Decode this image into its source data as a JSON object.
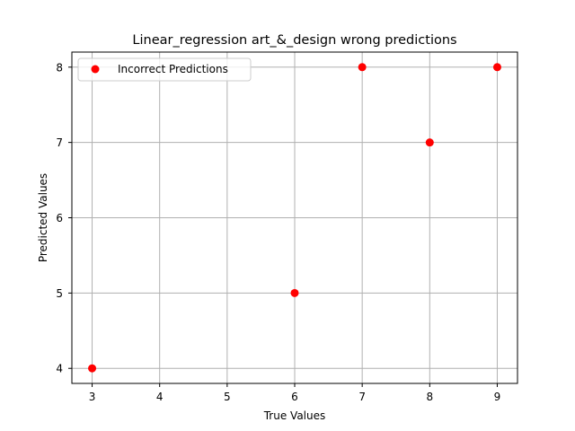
{
  "chart_data": {
    "type": "scatter",
    "title": "Linear_regression art_&_design wrong predictions",
    "xlabel": "True Values",
    "ylabel": "Predicted Values",
    "xlim": [
      2.7,
      9.3
    ],
    "ylim": [
      3.8,
      8.2
    ],
    "xticks": [
      3,
      4,
      5,
      6,
      7,
      8,
      9
    ],
    "yticks": [
      4,
      5,
      6,
      7,
      8
    ],
    "grid": true,
    "legend_position": "upper-left",
    "series": [
      {
        "name": "Incorrect Predictions",
        "color": "#ff0000",
        "points": [
          {
            "x": 3,
            "y": 4
          },
          {
            "x": 6,
            "y": 5
          },
          {
            "x": 7,
            "y": 8
          },
          {
            "x": 8,
            "y": 7
          },
          {
            "x": 9,
            "y": 8
          }
        ]
      }
    ]
  }
}
